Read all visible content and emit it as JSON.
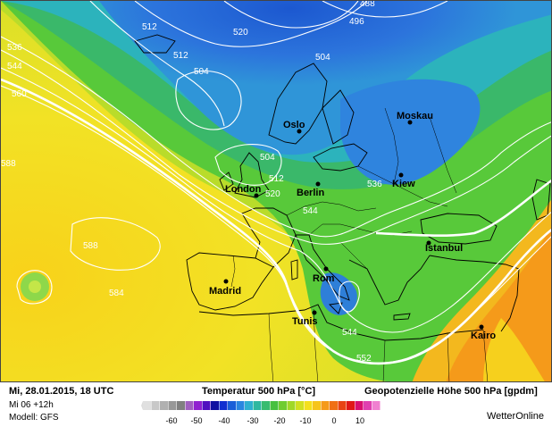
{
  "map": {
    "cities": [
      {
        "name": "Oslo"
      },
      {
        "name": "Moskau"
      },
      {
        "name": "London"
      },
      {
        "name": "Berlin"
      },
      {
        "name": "Kiew"
      },
      {
        "name": "Istanbul"
      },
      {
        "name": "Madrid"
      },
      {
        "name": "Rom"
      },
      {
        "name": "Tunis"
      },
      {
        "name": "Kairo"
      }
    ],
    "contour_labels": [
      "488",
      "496",
      "512",
      "520",
      "512",
      "504",
      "536",
      "544",
      "560",
      "504",
      "512",
      "520",
      "536",
      "544",
      "588",
      "588",
      "584",
      "544",
      "552"
    ]
  },
  "footer": {
    "date": "Mi, 28.01.2015, 18 UTC",
    "run": "Mi 06 +12h",
    "model": "Modell: GFS",
    "temp_title": "Temperatur 500 hPa [°C]",
    "geo_title": "Geopotenzielle Höhe 500 hPa [gpdm]",
    "brand": "WetterOnline",
    "scale_labels": [
      "-60",
      "-50",
      "-40",
      "-30",
      "-20",
      "-10",
      "0",
      "10"
    ]
  },
  "colors": {
    "cold_blue": "#1e5fd8",
    "blue": "#3a8ce0",
    "cyan": "#2fb8c8",
    "teal_green": "#32b878",
    "green": "#4cc83c",
    "yellow_green": "#b8dc28",
    "yellow": "#f0e020",
    "orange": "#f7a81c",
    "coastline": "#000000",
    "contour": "#ffffff"
  }
}
